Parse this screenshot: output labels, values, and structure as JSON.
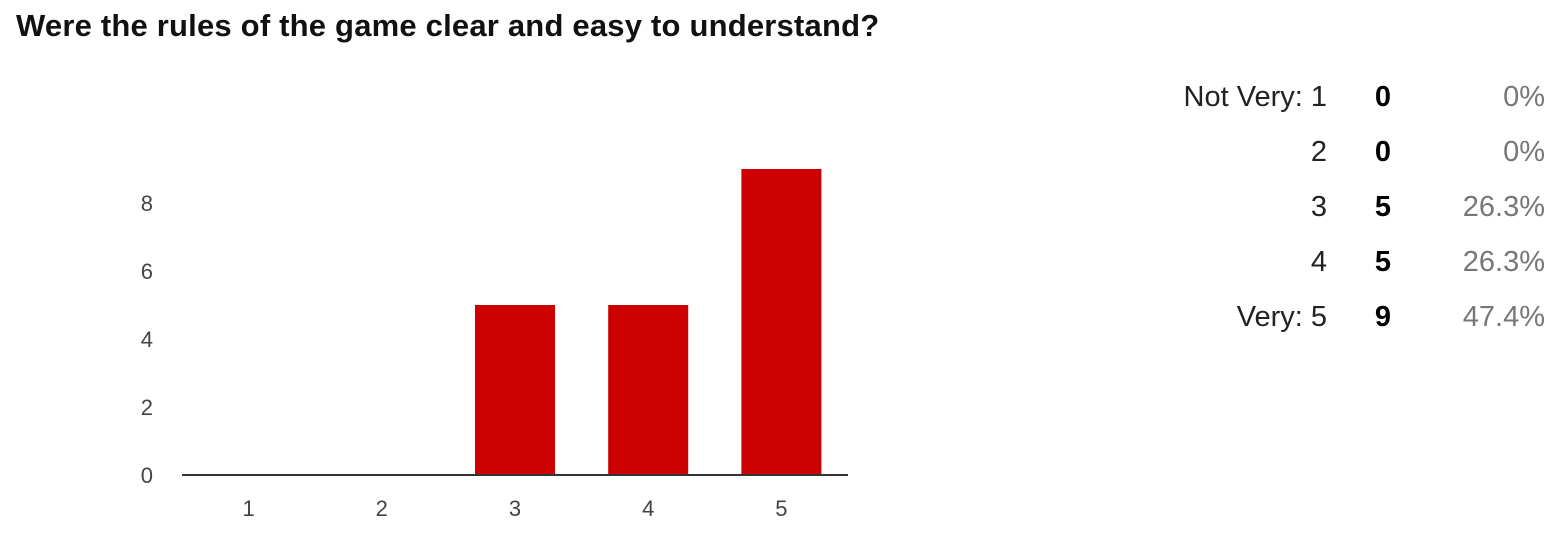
{
  "question": {
    "title": "Were the rules of the game clear and easy to understand?"
  },
  "colors": {
    "bar": "#cc0000",
    "axis": "#333333",
    "tick_text": "#444444"
  },
  "chart_data": {
    "type": "bar",
    "title": "Were the rules of the game clear and easy to understand?",
    "categories": [
      "1",
      "2",
      "3",
      "4",
      "5"
    ],
    "values": [
      0,
      0,
      5,
      5,
      9
    ],
    "yticks": [
      0,
      2,
      4,
      6,
      8
    ],
    "ylim": [
      0,
      9
    ],
    "xlabel": "",
    "ylabel": "",
    "grid": false,
    "legend": "none"
  },
  "summary": {
    "rows": [
      {
        "label": "Not Very: 1",
        "count": "0",
        "percent": "0%"
      },
      {
        "label": "2",
        "count": "0",
        "percent": "0%"
      },
      {
        "label": "3",
        "count": "5",
        "percent": "26.3%"
      },
      {
        "label": "4",
        "count": "5",
        "percent": "26.3%"
      },
      {
        "label": "Very: 5",
        "count": "9",
        "percent": "47.4%"
      }
    ]
  }
}
